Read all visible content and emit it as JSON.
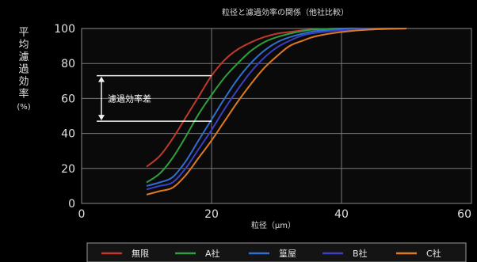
{
  "chart_data": {
    "type": "line",
    "title": "粒径と濾過効率の関係（他社比較）",
    "ylabel": "平均濾過効率(%)",
    "xlabel": "粒径（μm）",
    "xlim": [
      0,
      60
    ],
    "ylim": [
      0,
      100
    ],
    "xticks": [
      "0",
      "20",
      "40",
      "60"
    ],
    "yticks": [
      "0",
      "20",
      "40",
      "60",
      "80",
      "100"
    ],
    "grid": true,
    "legend_position": "bottom",
    "annotation": "濾過効率差",
    "series": [
      {
        "name": "無限",
        "color": "#c0392b",
        "x": [
          10,
          12,
          14,
          16,
          18,
          20,
          22,
          24,
          26,
          28,
          30,
          32,
          34,
          36,
          40,
          45,
          50
        ],
        "y": [
          21,
          27,
          37,
          49,
          61,
          73,
          82,
          88,
          92,
          95,
          97,
          98,
          99,
          99.5,
          100,
          100,
          100
        ]
      },
      {
        "name": "A社",
        "color": "#2e9e3e",
        "x": [
          10,
          12,
          14,
          16,
          18,
          20,
          22,
          24,
          26,
          28,
          30,
          32,
          34,
          36,
          40,
          45,
          50
        ],
        "y": [
          12,
          17,
          26,
          38,
          51,
          62,
          72,
          80,
          87,
          92,
          95,
          97,
          98.5,
          99.5,
          100,
          100,
          100
        ]
      },
      {
        "name": "篁屋",
        "color": "#2f6fd0",
        "x": [
          10,
          12,
          14,
          16,
          18,
          20,
          22,
          24,
          26,
          28,
          30,
          32,
          34,
          36,
          40,
          45,
          50
        ],
        "y": [
          10,
          12,
          15,
          24,
          36,
          48,
          60,
          71,
          80,
          87,
          92,
          95,
          97,
          98.5,
          99.5,
          100,
          100
        ]
      },
      {
        "name": "B社",
        "color": "#3b3fc4",
        "x": [
          10,
          12,
          14,
          16,
          18,
          20,
          22,
          24,
          26,
          28,
          30,
          32,
          34,
          36,
          40,
          45,
          50
        ],
        "y": [
          8,
          10,
          12,
          20,
          31,
          42,
          54,
          65,
          75,
          83,
          89,
          93,
          96,
          97.5,
          99,
          99.5,
          100
        ]
      },
      {
        "name": "C社",
        "color": "#e07a20",
        "x": [
          10,
          12,
          14,
          16,
          18,
          20,
          22,
          24,
          26,
          28,
          30,
          32,
          34,
          36,
          40,
          45,
          50
        ],
        "y": [
          5,
          7,
          9,
          16,
          26,
          36,
          47,
          58,
          68,
          77,
          84,
          90,
          93,
          95.5,
          98,
          99.5,
          100
        ]
      }
    ]
  }
}
